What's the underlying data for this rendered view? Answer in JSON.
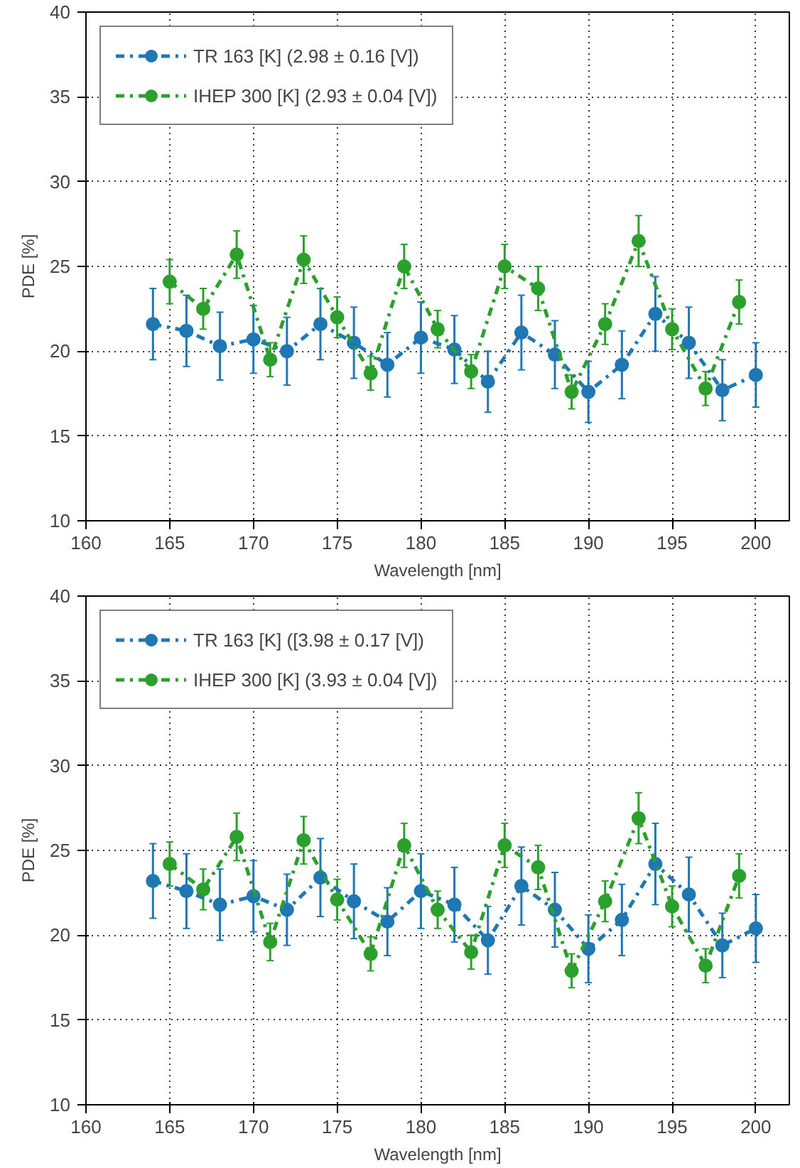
{
  "chart_data": [
    {
      "type": "line",
      "xlabel": "Wavelength [nm]",
      "ylabel": "PDE [%]",
      "xlim": [
        160,
        202
      ],
      "ylim": [
        10,
        40
      ],
      "xticks": [
        160,
        165,
        170,
        175,
        180,
        185,
        190,
        195,
        200
      ],
      "yticks": [
        10,
        15,
        20,
        25,
        30,
        35,
        40
      ],
      "grid": true,
      "legend": "top left",
      "marker": "circle",
      "line_style": "dashed",
      "series": [
        {
          "name": "TR 163 [K] (2.98 ± 0.16 [V])",
          "color": "#1f77b4",
          "x": [
            164,
            166,
            168,
            170,
            172,
            174,
            176,
            178,
            180,
            182,
            184,
            186,
            188,
            190,
            192,
            194,
            196,
            198,
            200
          ],
          "values": [
            21.6,
            21.2,
            20.3,
            20.7,
            20.0,
            21.6,
            20.5,
            19.2,
            20.8,
            20.1,
            18.2,
            21.1,
            19.8,
            17.6,
            19.2,
            22.2,
            20.5,
            17.7,
            18.6
          ],
          "errors": [
            2.1,
            2.1,
            2.0,
            2.0,
            2.0,
            2.1,
            2.1,
            1.9,
            2.1,
            2.0,
            1.8,
            2.2,
            2.0,
            1.8,
            2.0,
            2.2,
            2.1,
            1.8,
            1.9
          ]
        },
        {
          "name": "IHEP 300 [K] (2.93 ± 0.04 [V])",
          "color": "#2ca02c",
          "x": [
            165,
            167,
            169,
            171,
            173,
            175,
            177,
            179,
            181,
            183,
            185,
            187,
            189,
            191,
            193,
            195,
            197,
            199
          ],
          "values": [
            24.1,
            22.5,
            25.7,
            19.5,
            25.4,
            22.0,
            18.7,
            25.0,
            21.3,
            18.8,
            25.0,
            23.7,
            17.6,
            21.6,
            26.5,
            21.3,
            17.8,
            22.9
          ],
          "errors": [
            1.3,
            1.2,
            1.4,
            1.0,
            1.4,
            1.2,
            1.0,
            1.3,
            1.1,
            1.0,
            1.3,
            1.3,
            1.0,
            1.2,
            1.5,
            1.2,
            1.0,
            1.3
          ]
        }
      ]
    },
    {
      "type": "line",
      "xlabel": "Wavelength [nm]",
      "ylabel": "PDE [%]",
      "xlim": [
        160,
        202
      ],
      "ylim": [
        10,
        40
      ],
      "xticks": [
        160,
        165,
        170,
        175,
        180,
        185,
        190,
        195,
        200
      ],
      "yticks": [
        10,
        15,
        20,
        25,
        30,
        35,
        40
      ],
      "grid": true,
      "legend": "top left",
      "marker": "circle",
      "line_style": "dashed",
      "series": [
        {
          "name": "TR 163 [K] ([3.98 ± 0.17 [V])",
          "color": "#1f77b4",
          "x": [
            164,
            166,
            168,
            170,
            172,
            174,
            176,
            178,
            180,
            182,
            184,
            186,
            188,
            190,
            192,
            194,
            196,
            198,
            200
          ],
          "values": [
            23.2,
            22.6,
            21.8,
            22.3,
            21.5,
            23.4,
            22.0,
            20.8,
            22.6,
            21.8,
            19.7,
            22.9,
            21.5,
            19.2,
            20.9,
            24.2,
            22.4,
            19.4,
            20.4
          ],
          "errors": [
            2.2,
            2.2,
            2.1,
            2.1,
            2.1,
            2.3,
            2.2,
            2.0,
            2.2,
            2.2,
            2.0,
            2.3,
            2.2,
            2.0,
            2.1,
            2.4,
            2.2,
            1.9,
            2.0
          ]
        },
        {
          "name": "IHEP 300 [K] (3.93 ± 0.04 [V])",
          "color": "#2ca02c",
          "x": [
            165,
            167,
            169,
            171,
            173,
            175,
            177,
            179,
            181,
            183,
            185,
            187,
            189,
            191,
            193,
            195,
            197,
            199
          ],
          "values": [
            24.2,
            22.7,
            25.8,
            19.6,
            25.6,
            22.1,
            18.9,
            25.3,
            21.5,
            19.0,
            25.3,
            24.0,
            17.9,
            22.0,
            26.9,
            21.7,
            18.2,
            23.5
          ],
          "errors": [
            1.3,
            1.2,
            1.4,
            1.1,
            1.4,
            1.2,
            1.0,
            1.3,
            1.1,
            1.0,
            1.3,
            1.3,
            1.0,
            1.2,
            1.5,
            1.2,
            1.0,
            1.3
          ]
        }
      ]
    }
  ]
}
